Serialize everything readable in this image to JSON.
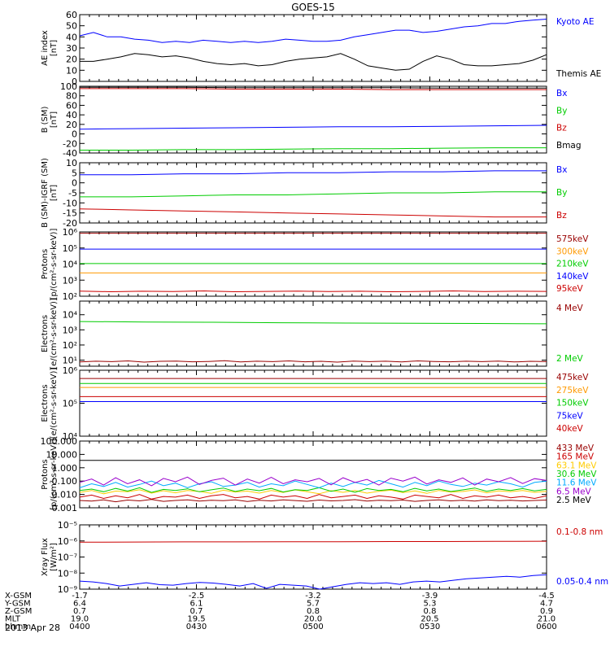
{
  "title": "GOES-15",
  "date": "2013 Apr 28",
  "chart_data": [
    {
      "type": "line",
      "ylabel": "AE index\n[nT]",
      "ylim": [
        0,
        60
      ],
      "log": false,
      "ticks": [
        [
          "0",
          0
        ],
        [
          "10",
          10
        ],
        [
          "20",
          20
        ],
        [
          "30",
          30
        ],
        [
          "40",
          40
        ],
        [
          "50",
          50
        ],
        [
          "60",
          60
        ]
      ],
      "series": [
        {
          "name": "Kyoto AE",
          "color": "#0000ff",
          "values": [
            41,
            44,
            40,
            40,
            38,
            37,
            35,
            36,
            35,
            37,
            36,
            35,
            36,
            35,
            36,
            38,
            37,
            36,
            36,
            37,
            40,
            42,
            44,
            46,
            46,
            44,
            45,
            47,
            49,
            50,
            52,
            52,
            54,
            55,
            56
          ]
        },
        {
          "name": "Themis AE",
          "color": "#000000",
          "values": [
            18,
            18,
            20,
            22,
            25,
            24,
            22,
            23,
            21,
            18,
            16,
            15,
            16,
            14,
            15,
            18,
            20,
            21,
            22,
            25,
            20,
            14,
            12,
            10,
            11,
            18,
            23,
            20,
            15,
            14,
            14,
            15,
            16,
            19,
            24
          ]
        }
      ]
    },
    {
      "type": "line",
      "ylabel": "B (SM)\n[nT]",
      "ylim": [
        -40,
        100
      ],
      "log": false,
      "ticks": [
        [
          "-40",
          -40
        ],
        [
          "-20",
          -20
        ],
        [
          "0",
          0
        ],
        [
          "20",
          20
        ],
        [
          "40",
          40
        ],
        [
          "60",
          60
        ],
        [
          "80",
          80
        ],
        [
          "100",
          100
        ]
      ],
      "series": [
        {
          "name": "Bx",
          "color": "#0000ff",
          "values": [
            10,
            11,
            12,
            13,
            14,
            15,
            15,
            16,
            17,
            18
          ]
        },
        {
          "name": "By",
          "color": "#00cc00",
          "values": [
            -34,
            -34,
            -33,
            -33,
            -32,
            -31,
            -31,
            -30,
            -29,
            -29
          ]
        },
        {
          "name": "Bz",
          "color": "#cc0000",
          "values": [
            95,
            95,
            95,
            94,
            94,
            94,
            93,
            93,
            93,
            93
          ]
        },
        {
          "name": "Bmag",
          "color": "#000000",
          "values": [
            98,
            98,
            98,
            97,
            97,
            97,
            97,
            96,
            96,
            96
          ]
        }
      ]
    },
    {
      "type": "line",
      "ylabel": "B (SM)-IGRF (SM)\n[nT]",
      "ylim": [
        -20,
        10
      ],
      "log": false,
      "ticks": [
        [
          "-20",
          -20
        ],
        [
          "-15",
          -15
        ],
        [
          "-10",
          -10
        ],
        [
          "-5",
          -5
        ],
        [
          "0",
          0
        ],
        [
          "5",
          5
        ],
        [
          "10",
          10
        ]
      ],
      "series": [
        {
          "name": "Bx",
          "color": "#0000ff",
          "values": [
            4,
            4,
            4.5,
            4.5,
            5,
            5,
            5.5,
            5.5,
            6,
            6
          ]
        },
        {
          "name": "By",
          "color": "#00cc00",
          "values": [
            -7,
            -7,
            -6.5,
            -6,
            -6,
            -5.5,
            -5,
            -5,
            -4.5,
            -4.5
          ]
        },
        {
          "name": "Bz",
          "color": "#cc0000",
          "values": [
            -13,
            -13.5,
            -14,
            -14.5,
            -15,
            -15.5,
            -16,
            -16.5,
            -17,
            -17
          ]
        }
      ]
    },
    {
      "type": "line",
      "ylabel": "Protons\n[p/(cm²-s-sr-keV)]",
      "ylim": [
        2,
        6
      ],
      "log": true,
      "ticks": [
        [
          "10²",
          2
        ],
        [
          "10³",
          3
        ],
        [
          "10⁴",
          4
        ],
        [
          "10⁵",
          5
        ],
        [
          "10⁶",
          6
        ]
      ],
      "series": [
        {
          "name": "575keV",
          "color": "#990000",
          "values": [
            5.92,
            5.92,
            5.92,
            5.92
          ]
        },
        {
          "name": "300keV",
          "color": "#ff9900",
          "values": [
            3.45,
            3.45,
            3.45,
            3.45
          ]
        },
        {
          "name": "210keV",
          "color": "#00cc00",
          "values": [
            4.03,
            4.03,
            4.03,
            4.03
          ]
        },
        {
          "name": "140keV",
          "color": "#0000ff",
          "values": [
            4.93,
            4.93,
            4.93,
            4.93
          ]
        },
        {
          "name": "95keV",
          "color": "#cc0000",
          "values": [
            2.32,
            2.28,
            2.31,
            2.29,
            2.33,
            2.28,
            2.3,
            2.32,
            2.29,
            2.31,
            2.28,
            2.3,
            2.33,
            2.29,
            2.31,
            2.3
          ]
        }
      ]
    },
    {
      "type": "line",
      "ylabel": "Electrons\n[e/(cm²-s-sr-keV)]",
      "ylim": [
        0.6,
        4.9
      ],
      "log": true,
      "ticks": [
        [
          "10¹",
          1
        ],
        [
          "10²",
          2
        ],
        [
          "10³",
          3
        ],
        [
          "10⁴",
          4
        ]
      ],
      "series": [
        {
          "name": "4 MeV",
          "color": "#990000",
          "values": [
            0.88,
            0.93,
            0.9,
            0.95,
            0.87,
            0.92,
            0.94,
            0.89,
            0.91,
            0.96,
            0.88,
            0.93,
            0.9,
            0.95,
            0.89,
            0.92,
            0.87,
            0.94,
            0.9,
            0.93,
            0.88,
            0.95,
            0.91,
            0.89,
            0.93,
            0.9,
            0.94,
            0.88,
            0.92,
            0.9
          ]
        },
        {
          "name": "2 MeV",
          "color": "#00cc00",
          "values": [
            3.55,
            3.52,
            3.5,
            3.47,
            3.45,
            3.43,
            3.42,
            3.4
          ]
        }
      ]
    },
    {
      "type": "line",
      "ylabel": "Electrons\n[e/(cm²-s-sr-keV)]",
      "ylim": [
        4,
        6
      ],
      "log": true,
      "ticks": [
        [
          "10⁴",
          4
        ],
        [
          "10⁵",
          5
        ],
        [
          "10⁶",
          6
        ]
      ],
      "series": [
        {
          "name": "475keV",
          "color": "#990000",
          "values": [
            5.75,
            5.75,
            5.75,
            5.75
          ]
        },
        {
          "name": "275keV",
          "color": "#ff9900",
          "values": [
            5.48,
            5.48,
            5.48,
            5.48
          ]
        },
        {
          "name": "150keV",
          "color": "#00cc00",
          "values": [
            5.6,
            5.6,
            5.6,
            5.6
          ]
        },
        {
          "name": "75keV",
          "color": "#0000ff",
          "values": [
            5.05,
            5.05,
            5.05,
            5.05
          ]
        },
        {
          "name": "40keV",
          "color": "#cc0000",
          "values": [
            5.2,
            5.2,
            5.2,
            5.2
          ]
        }
      ]
    },
    {
      "type": "line",
      "ylabel": "Protons\n[p/(cm²-s-sr-keV)]",
      "ylim": [
        -3,
        2
      ],
      "log": true,
      "ticks": [
        [
          "0.001",
          -3
        ],
        [
          "0.010",
          -2
        ],
        [
          "0.100",
          -1
        ],
        [
          "1.000",
          0
        ],
        [
          "10.000",
          1
        ],
        [
          "100.000",
          2
        ]
      ],
      "series": [
        {
          "name": "433 MeV",
          "color": "#990000",
          "values": [
            -2.45,
            -2.5,
            -2.4,
            -2.55,
            -2.42,
            -2.48,
            -2.38,
            -2.52,
            -2.45,
            -2.4,
            -2.5,
            -2.43,
            -2.47,
            -2.41,
            -2.53,
            -2.44,
            -2.49,
            -2.4,
            -2.46,
            -2.51,
            -2.42,
            -2.48,
            -2.45,
            -2.39,
            -2.5,
            -2.44,
            -2.47,
            -2.42,
            -2.52,
            -2.45,
            -2.4,
            -2.48,
            -2.44,
            -2.5,
            -2.41,
            -2.47,
            -2.43,
            -2.49,
            -2.45,
            -2.42
          ]
        },
        {
          "name": "165 MeV",
          "color": "#cc0000",
          "values": [
            -2.2,
            -2.05,
            -2.3,
            -2.1,
            -2.25,
            -2.0,
            -2.35,
            -2.15,
            -2.2,
            -2.05,
            -2.3,
            -2.1,
            -2.0,
            -2.25,
            -2.15,
            -2.35,
            -2.05,
            -2.2,
            -2.1,
            -2.3,
            -2.0,
            -2.25,
            -2.15,
            -2.05,
            -2.3,
            -2.1,
            -2.2,
            -2.35,
            -2.05,
            -2.15,
            -2.25,
            -2.0,
            -2.3,
            -2.1,
            -2.2,
            -2.05,
            -2.25,
            -2.15,
            -2.3,
            -2.1
          ]
        },
        {
          "name": "63.1 MeV",
          "color": "#ffcc00",
          "values": [
            -1.85,
            -1.7,
            -1.95,
            -1.75,
            -1.8,
            -1.65,
            -1.9,
            -1.72,
            -1.88,
            -1.7,
            -1.78,
            -1.92,
            -1.68,
            -1.82,
            -1.75,
            -1.9,
            -1.7,
            -1.85,
            -1.66,
            -1.8,
            -1.95,
            -1.72,
            -1.84,
            -1.7,
            -1.9,
            -1.76,
            -1.68,
            -1.86,
            -1.74,
            -1.92,
            -1.7,
            -1.82,
            -1.78,
            -1.66,
            -1.88,
            -1.74,
            -1.8,
            -1.7,
            -1.85,
            -1.76
          ]
        },
        {
          "name": "30.6 MeV",
          "color": "#00cc00",
          "values": [
            -1.7,
            -1.6,
            -1.8,
            -1.55,
            -1.75,
            -1.5,
            -1.85,
            -1.62,
            -1.7,
            -1.58,
            -1.8,
            -1.65,
            -1.52,
            -1.78,
            -1.6,
            -1.72,
            -1.55,
            -1.82,
            -1.64,
            -1.7,
            -1.5,
            -1.76,
            -1.6,
            -1.84,
            -1.56,
            -1.7,
            -1.62,
            -1.8,
            -1.54,
            -1.74,
            -1.6,
            -1.78,
            -1.66,
            -1.52,
            -1.76,
            -1.6,
            -1.7,
            -1.56,
            -1.74,
            -1.62
          ]
        },
        {
          "name": "11.6 MeV",
          "color": "#00aaff",
          "values": [
            -1.5,
            -1.2,
            -1.4,
            -1.1,
            -1.45,
            -1.25,
            -1.0,
            -1.35,
            -1.15,
            -1.5,
            -1.2,
            -1.05,
            -1.4,
            -1.3,
            -1.1,
            -1.45,
            -1.2,
            -1.35,
            -1.0,
            -1.25,
            -1.5,
            -1.15,
            -1.4,
            -1.1,
            -1.3,
            -0.95,
            -1.2,
            -1.45,
            -1.1,
            -1.35,
            -1.0,
            -1.25,
            -1.4,
            -1.15,
            -1.3,
            -1.05,
            -1.2,
            -1.45,
            -1.1,
            -1.0
          ]
        },
        {
          "name": "6.5 MeV",
          "color": "#9900cc",
          "values": [
            -1.1,
            -0.85,
            -1.3,
            -0.75,
            -1.2,
            -0.9,
            -1.35,
            -0.8,
            -1.05,
            -0.7,
            -1.25,
            -0.95,
            -0.78,
            -1.3,
            -0.85,
            -1.15,
            -0.72,
            -1.2,
            -0.9,
            -1.05,
            -0.8,
            -1.28,
            -0.75,
            -1.1,
            -0.88,
            -1.3,
            -0.78,
            -1.0,
            -0.7,
            -1.22,
            -0.9,
            -1.1,
            -0.76,
            -1.3,
            -0.85,
            -1.05,
            -0.74,
            -1.18,
            -0.82,
            -0.95
          ]
        },
        {
          "name": "2.5 MeV",
          "color": "#000000",
          "values": [
            0.55,
            0.55,
            0.56,
            0.56,
            0.57,
            0.57,
            0.58
          ]
        }
      ]
    },
    {
      "type": "line",
      "ylabel": "Xray Flux\n[W/m²]",
      "ylim": [
        -9,
        -5
      ],
      "log": true,
      "ticks": [
        [
          "10⁻⁹",
          -9
        ],
        [
          "10⁻⁸",
          -8
        ],
        [
          "10⁻⁷",
          -7
        ],
        [
          "10⁻⁶",
          -6
        ],
        [
          "10⁻⁵",
          -5
        ]
      ],
      "series": [
        {
          "name": "0.1-0.8 nm",
          "color": "#cc0000",
          "values": [
            -6.08,
            -6.07,
            -6.06,
            -6.06,
            -6.05,
            -6.05,
            -6.04,
            -6.04,
            -6.03,
            -6.02
          ]
        },
        {
          "name": "0.05-0.4 nm",
          "color": "#0000ff",
          "values": [
            -8.5,
            -8.55,
            -8.65,
            -8.8,
            -8.7,
            -8.6,
            -8.72,
            -8.75,
            -8.65,
            -8.58,
            -8.62,
            -8.7,
            -8.8,
            -8.65,
            -8.95,
            -8.7,
            -8.75,
            -8.8,
            -9.0,
            -8.85,
            -8.7,
            -8.6,
            -8.65,
            -8.6,
            -8.7,
            -8.55,
            -8.5,
            -8.55,
            -8.45,
            -8.35,
            -8.3,
            -8.25,
            -8.2,
            -8.25,
            -8.15,
            -8.1
          ]
        }
      ]
    }
  ],
  "xaxis": {
    "rows": [
      {
        "label": "X-GSM",
        "values": [
          "-1.7",
          "-2.5",
          "-3.2",
          "-3.9",
          "-4.5"
        ]
      },
      {
        "label": "Y-GSM",
        "values": [
          "6.4",
          "6.1",
          "5.7",
          "5.3",
          "4.7"
        ]
      },
      {
        "label": "Z-GSM",
        "values": [
          "0.7",
          "0.7",
          "0.8",
          "0.8",
          "0.9"
        ]
      },
      {
        "label": "MLT",
        "values": [
          "19.0",
          "19.5",
          "20.0",
          "20.5",
          "21.0"
        ]
      },
      {
        "label": "hhmm",
        "values": [
          "0400",
          "0430",
          "0500",
          "0530",
          "0600"
        ]
      }
    ]
  }
}
